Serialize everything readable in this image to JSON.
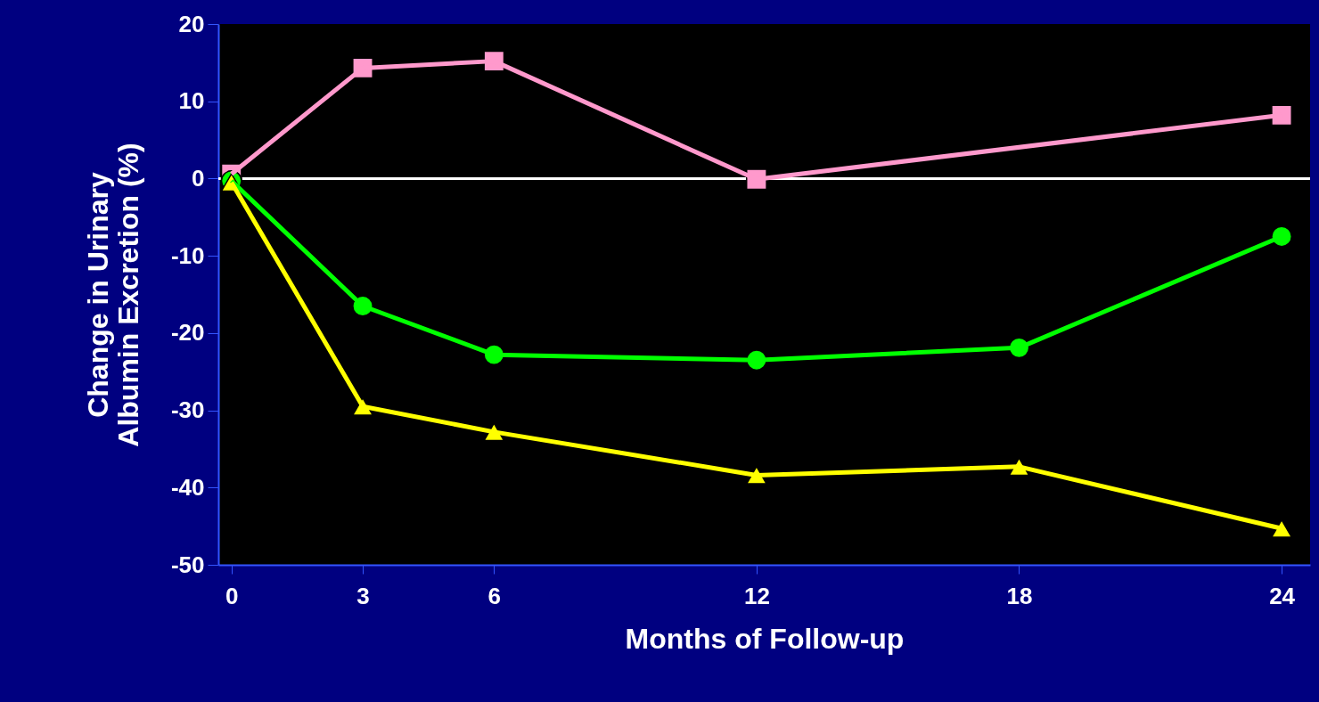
{
  "chart_data": {
    "type": "line",
    "xlabel": "Months of Follow-up",
    "ylabel": "Change in Urinary\nAlbumin Excretion (%)",
    "x": [
      0,
      3,
      6,
      12,
      18,
      24
    ],
    "xlim": [
      -0.3,
      24.65
    ],
    "xticks": [
      0,
      3,
      6,
      12,
      18,
      24
    ],
    "ylim": [
      -50,
      20
    ],
    "yticks": [
      -50,
      -40,
      -30,
      -20,
      -10,
      0,
      10,
      20
    ],
    "grid": false,
    "line_style": "solid",
    "ref_lines": [
      {
        "axis": "y",
        "value": 0,
        "color": "#ffffff"
      }
    ],
    "series": [
      {
        "color": "#ff99cc",
        "marker": "square",
        "x": [
          0,
          3,
          6,
          12,
          24
        ],
        "values": [
          0.6,
          14.3,
          15.2,
          -0.1,
          8.2
        ]
      },
      {
        "color": "#00ff00",
        "marker": "circle",
        "values": [
          -0.3,
          -16.5,
          -22.8,
          -23.5,
          -21.9,
          -7.5
        ]
      },
      {
        "color": "#ffff00",
        "marker": "triangle",
        "values": [
          -0.5,
          -29.5,
          -32.8,
          -38.4,
          -37.3,
          -45.3
        ]
      }
    ]
  }
}
